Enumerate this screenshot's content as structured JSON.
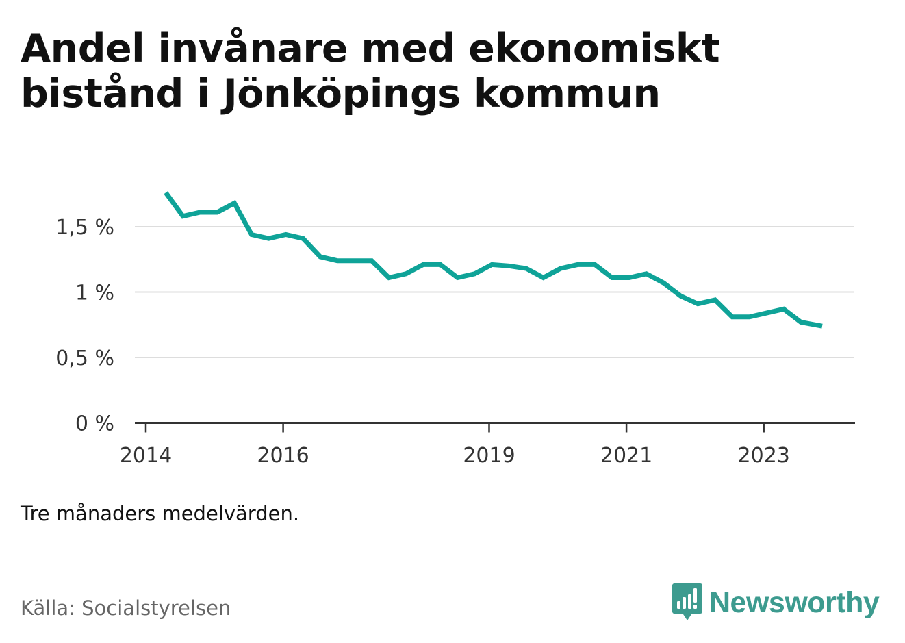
{
  "chart_data": {
    "type": "line",
    "title": "Andel invånare med ekonomiskt bistånd i Jönköpings kommun",
    "xlabel": "",
    "ylabel": "",
    "ylim": [
      0,
      1.9
    ],
    "y_ticks": [
      {
        "value": 0,
        "label": "0 %"
      },
      {
        "value": 0.5,
        "label": "0,5 %"
      },
      {
        "value": 1,
        "label": "1 %"
      },
      {
        "value": 1.5,
        "label": "1,5 %"
      }
    ],
    "x_ticks": [
      {
        "value": 2014,
        "label": "2014"
      },
      {
        "value": 2016,
        "label": "2016"
      },
      {
        "value": 2019,
        "label": "2019"
      },
      {
        "value": 2021,
        "label": "2021"
      },
      {
        "value": 2023,
        "label": "2023"
      }
    ],
    "grid": true,
    "series": [
      {
        "name": "Andel invånare med ekonomiskt bistånd",
        "color": "#0fa398",
        "x": [
          2014.29,
          2014.54,
          2014.79,
          2015.04,
          2015.29,
          2015.54,
          2015.79,
          2016.04,
          2016.29,
          2016.54,
          2016.79,
          2017.04,
          2017.29,
          2017.54,
          2017.79,
          2018.04,
          2018.29,
          2018.54,
          2018.79,
          2019.04,
          2019.29,
          2019.54,
          2019.79,
          2020.04,
          2020.29,
          2020.54,
          2020.79,
          2021.04,
          2021.29,
          2021.54,
          2021.79,
          2022.04,
          2022.29,
          2022.54,
          2022.79,
          2023.04,
          2023.29,
          2023.54,
          2023.85
        ],
        "values": [
          1.76,
          1.58,
          1.61,
          1.61,
          1.68,
          1.44,
          1.41,
          1.44,
          1.41,
          1.27,
          1.24,
          1.24,
          1.24,
          1.11,
          1.14,
          1.21,
          1.21,
          1.11,
          1.14,
          1.21,
          1.2,
          1.18,
          1.11,
          1.18,
          1.21,
          1.21,
          1.11,
          1.11,
          1.14,
          1.07,
          0.97,
          0.91,
          0.94,
          0.81,
          0.81,
          0.84,
          0.87,
          0.77,
          0.74
        ]
      }
    ]
  },
  "footer": {
    "note": "Tre månaders medelvärden.",
    "source": "Källa: Socialstyrelsen",
    "brand": "Newsworthy"
  },
  "colors": {
    "line": "#0fa398",
    "brand": "#3d9b8f",
    "grid": "#dddddd",
    "axis": "#333333"
  }
}
